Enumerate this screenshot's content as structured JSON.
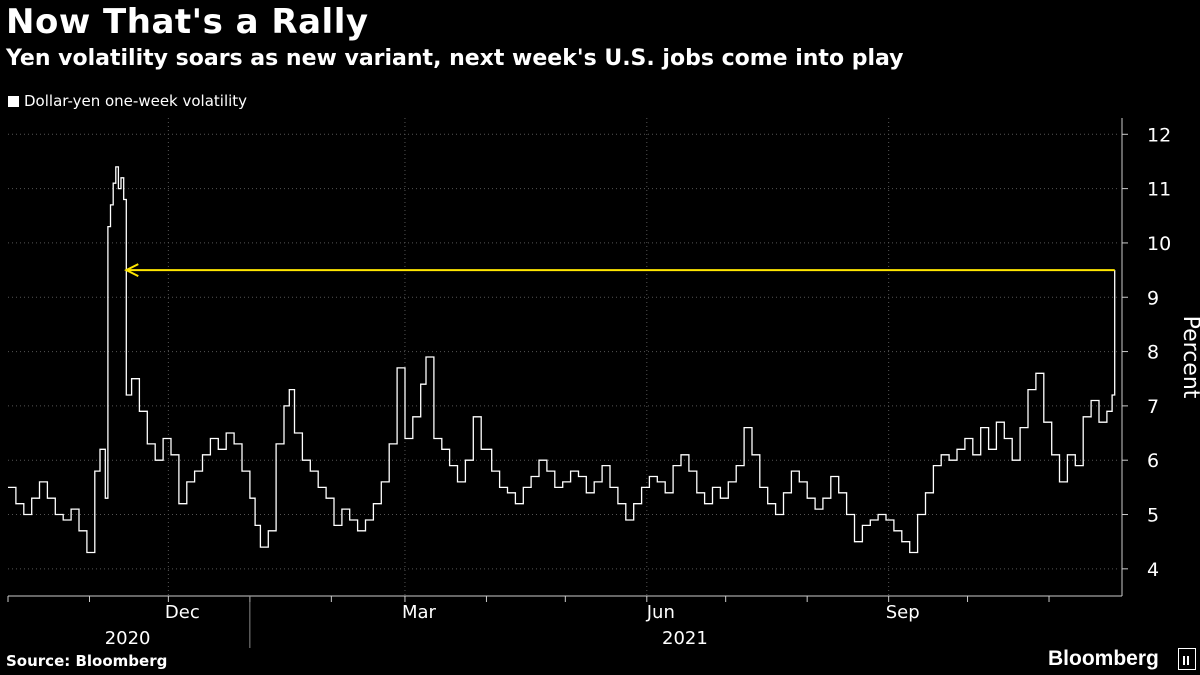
{
  "header": {
    "title": "Now That's a Rally",
    "subtitle": "Yen volatility soars as new variant, next week's U.S. jobs come into play"
  },
  "legend": {
    "label": "Dollar-yen one-week volatility"
  },
  "footer": {
    "source": "Source: Bloomberg",
    "brand": "Bloomberg"
  },
  "chart_data": {
    "type": "line",
    "title": "Now That's a Rally",
    "subtitle": "Yen volatility soars as new variant, next week's U.S. jobs come into play",
    "ylabel": "Percent",
    "ylim": [
      3.5,
      12.3
    ],
    "yticks": [
      4,
      5,
      6,
      7,
      8,
      9,
      10,
      11,
      12
    ],
    "xlim": [
      "2020-10-01",
      "2021-11-28"
    ],
    "xticks": [
      {
        "date": "2020-12-01",
        "label": "Dec"
      },
      {
        "date": "2021-03-01",
        "label": "Mar"
      },
      {
        "date": "2021-06-01",
        "label": "Jun"
      },
      {
        "date": "2021-09-01",
        "label": "Sep"
      }
    ],
    "year_labels": [
      {
        "label": "2020",
        "from": "2020-10-01",
        "to": "2020-12-31"
      },
      {
        "label": "2021",
        "from": "2021-01-01",
        "to": "2021-11-28"
      }
    ],
    "grid": true,
    "legend_position": "top-left",
    "series_color": "#ffffff",
    "annotation_color": "#ffe600",
    "annotation": {
      "type": "arrow",
      "y": 9.5,
      "from_date": "2021-11-26",
      "to_date": "2020-11-15"
    },
    "series": [
      {
        "name": "Dollar-yen one-week volatility",
        "points": [
          [
            "2020-10-01",
            5.5
          ],
          [
            "2020-10-04",
            5.2
          ],
          [
            "2020-10-07",
            5.0
          ],
          [
            "2020-10-10",
            5.3
          ],
          [
            "2020-10-13",
            5.6
          ],
          [
            "2020-10-16",
            5.3
          ],
          [
            "2020-10-19",
            5.0
          ],
          [
            "2020-10-22",
            4.9
          ],
          [
            "2020-10-25",
            5.1
          ],
          [
            "2020-10-28",
            4.7
          ],
          [
            "2020-10-31",
            4.3
          ],
          [
            "2020-11-03",
            5.8
          ],
          [
            "2020-11-05",
            6.2
          ],
          [
            "2020-11-07",
            5.3
          ],
          [
            "2020-11-08",
            10.3
          ],
          [
            "2020-11-09",
            10.7
          ],
          [
            "2020-11-10",
            11.1
          ],
          [
            "2020-11-11",
            11.4
          ],
          [
            "2020-11-12",
            11.0
          ],
          [
            "2020-11-13",
            11.2
          ],
          [
            "2020-11-14",
            10.8
          ],
          [
            "2020-11-15",
            7.2
          ],
          [
            "2020-11-17",
            7.5
          ],
          [
            "2020-11-20",
            6.9
          ],
          [
            "2020-11-23",
            6.3
          ],
          [
            "2020-11-26",
            6.0
          ],
          [
            "2020-11-29",
            6.4
          ],
          [
            "2020-12-02",
            6.1
          ],
          [
            "2020-12-05",
            5.2
          ],
          [
            "2020-12-08",
            5.6
          ],
          [
            "2020-12-11",
            5.8
          ],
          [
            "2020-12-14",
            6.1
          ],
          [
            "2020-12-17",
            6.4
          ],
          [
            "2020-12-20",
            6.2
          ],
          [
            "2020-12-23",
            6.5
          ],
          [
            "2020-12-26",
            6.3
          ],
          [
            "2020-12-29",
            5.8
          ],
          [
            "2021-01-01",
            5.3
          ],
          [
            "2021-01-03",
            4.8
          ],
          [
            "2021-01-05",
            4.4
          ],
          [
            "2021-01-08",
            4.7
          ],
          [
            "2021-01-11",
            6.3
          ],
          [
            "2021-01-14",
            7.0
          ],
          [
            "2021-01-16",
            7.3
          ],
          [
            "2021-01-18",
            6.5
          ],
          [
            "2021-01-21",
            6.0
          ],
          [
            "2021-01-24",
            5.8
          ],
          [
            "2021-01-27",
            5.5
          ],
          [
            "2021-01-30",
            5.3
          ],
          [
            "2021-02-02",
            4.8
          ],
          [
            "2021-02-05",
            5.1
          ],
          [
            "2021-02-08",
            4.9
          ],
          [
            "2021-02-11",
            4.7
          ],
          [
            "2021-02-14",
            4.9
          ],
          [
            "2021-02-17",
            5.2
          ],
          [
            "2021-02-20",
            5.6
          ],
          [
            "2021-02-23",
            6.3
          ],
          [
            "2021-02-26",
            7.7
          ],
          [
            "2021-03-01",
            6.4
          ],
          [
            "2021-03-04",
            6.8
          ],
          [
            "2021-03-07",
            7.4
          ],
          [
            "2021-03-09",
            7.9
          ],
          [
            "2021-03-12",
            6.4
          ],
          [
            "2021-03-15",
            6.2
          ],
          [
            "2021-03-18",
            5.9
          ],
          [
            "2021-03-21",
            5.6
          ],
          [
            "2021-03-24",
            6.0
          ],
          [
            "2021-03-27",
            6.8
          ],
          [
            "2021-03-30",
            6.2
          ],
          [
            "2021-04-03",
            5.8
          ],
          [
            "2021-04-06",
            5.5
          ],
          [
            "2021-04-09",
            5.4
          ],
          [
            "2021-04-12",
            5.2
          ],
          [
            "2021-04-15",
            5.5
          ],
          [
            "2021-04-18",
            5.7
          ],
          [
            "2021-04-21",
            6.0
          ],
          [
            "2021-04-24",
            5.8
          ],
          [
            "2021-04-27",
            5.5
          ],
          [
            "2021-04-30",
            5.6
          ],
          [
            "2021-05-03",
            5.8
          ],
          [
            "2021-05-06",
            5.7
          ],
          [
            "2021-05-09",
            5.4
          ],
          [
            "2021-05-12",
            5.6
          ],
          [
            "2021-05-15",
            5.9
          ],
          [
            "2021-05-18",
            5.5
          ],
          [
            "2021-05-21",
            5.2
          ],
          [
            "2021-05-24",
            4.9
          ],
          [
            "2021-05-27",
            5.2
          ],
          [
            "2021-05-30",
            5.5
          ],
          [
            "2021-06-02",
            5.7
          ],
          [
            "2021-06-05",
            5.6
          ],
          [
            "2021-06-08",
            5.4
          ],
          [
            "2021-06-11",
            5.9
          ],
          [
            "2021-06-14",
            6.1
          ],
          [
            "2021-06-17",
            5.8
          ],
          [
            "2021-06-20",
            5.4
          ],
          [
            "2021-06-23",
            5.2
          ],
          [
            "2021-06-26",
            5.5
          ],
          [
            "2021-06-29",
            5.3
          ],
          [
            "2021-07-02",
            5.6
          ],
          [
            "2021-07-05",
            5.9
          ],
          [
            "2021-07-08",
            6.6
          ],
          [
            "2021-07-11",
            6.1
          ],
          [
            "2021-07-14",
            5.5
          ],
          [
            "2021-07-17",
            5.2
          ],
          [
            "2021-07-20",
            5.0
          ],
          [
            "2021-07-23",
            5.4
          ],
          [
            "2021-07-26",
            5.8
          ],
          [
            "2021-07-29",
            5.6
          ],
          [
            "2021-08-01",
            5.3
          ],
          [
            "2021-08-04",
            5.1
          ],
          [
            "2021-08-07",
            5.3
          ],
          [
            "2021-08-10",
            5.7
          ],
          [
            "2021-08-13",
            5.4
          ],
          [
            "2021-08-16",
            5.0
          ],
          [
            "2021-08-19",
            4.5
          ],
          [
            "2021-08-22",
            4.8
          ],
          [
            "2021-08-25",
            4.9
          ],
          [
            "2021-08-28",
            5.0
          ],
          [
            "2021-08-31",
            4.9
          ],
          [
            "2021-09-03",
            4.7
          ],
          [
            "2021-09-06",
            4.5
          ],
          [
            "2021-09-09",
            4.3
          ],
          [
            "2021-09-12",
            5.0
          ],
          [
            "2021-09-15",
            5.4
          ],
          [
            "2021-09-18",
            5.9
          ],
          [
            "2021-09-21",
            6.1
          ],
          [
            "2021-09-24",
            6.0
          ],
          [
            "2021-09-27",
            6.2
          ],
          [
            "2021-09-30",
            6.4
          ],
          [
            "2021-10-03",
            6.1
          ],
          [
            "2021-10-06",
            6.6
          ],
          [
            "2021-10-09",
            6.2
          ],
          [
            "2021-10-12",
            6.7
          ],
          [
            "2021-10-15",
            6.4
          ],
          [
            "2021-10-18",
            6.0
          ],
          [
            "2021-10-21",
            6.6
          ],
          [
            "2021-10-24",
            7.3
          ],
          [
            "2021-10-27",
            7.6
          ],
          [
            "2021-10-30",
            6.7
          ],
          [
            "2021-11-02",
            6.1
          ],
          [
            "2021-11-05",
            5.6
          ],
          [
            "2021-11-08",
            6.1
          ],
          [
            "2021-11-11",
            5.9
          ],
          [
            "2021-11-14",
            6.8
          ],
          [
            "2021-11-17",
            7.1
          ],
          [
            "2021-11-20",
            6.7
          ],
          [
            "2021-11-23",
            6.9
          ],
          [
            "2021-11-25",
            7.2
          ],
          [
            "2021-11-26",
            9.5
          ]
        ]
      }
    ]
  }
}
